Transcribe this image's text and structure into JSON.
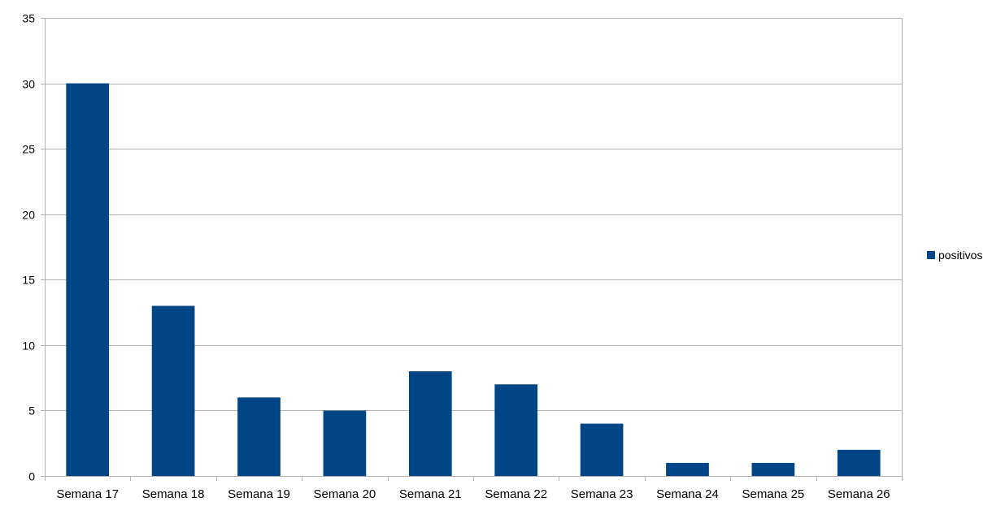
{
  "chart_data": {
    "type": "bar",
    "title": "",
    "xlabel": "",
    "ylabel": "",
    "categories": [
      "Semana 17",
      "Semana 18",
      "Semana 19",
      "Semana 20",
      "Semana 21",
      "Semana 22",
      "Semana 23",
      "Semana 24",
      "Semana 25",
      "Semana 26"
    ],
    "series": [
      {
        "name": "positivos",
        "values": [
          30,
          13,
          6,
          5,
          8,
          7,
          4,
          1,
          1,
          2
        ],
        "color": "#004586"
      }
    ],
    "ylim": [
      0,
      35
    ],
    "yticks": [
      0,
      5,
      10,
      15,
      20,
      25,
      30,
      35
    ],
    "grid": true,
    "legend_position": "right"
  }
}
